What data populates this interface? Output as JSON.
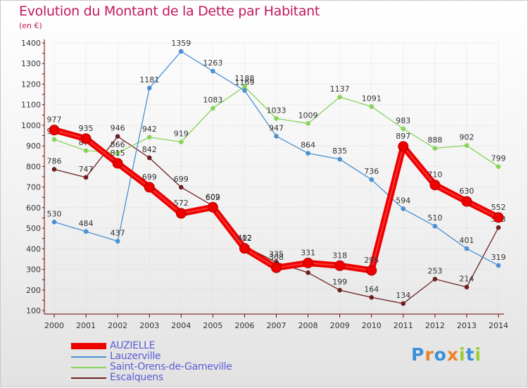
{
  "header": {
    "title": "Evolution du Montant de la Dette par Habitant",
    "unit": "(en €)"
  },
  "colors": {
    "title": "#c2185b",
    "axis": "#6b0000",
    "grid": "#d4d4d4",
    "legend_text": "#5b5bd6"
  },
  "brand": {
    "text": "Proxiti",
    "letters": [
      "P",
      "r",
      "o",
      "x",
      "i",
      "t",
      "i"
    ],
    "colors": [
      "#3a8fd8",
      "#e8822a",
      "#3a8fd8",
      "#e8822a",
      "#9ccc33",
      "#3a8fd8",
      "#9ccc33"
    ]
  },
  "chart_data": {
    "type": "line",
    "title": "Evolution du Montant de la Dette par Habitant",
    "ylabel": "(en €)",
    "xlabel": "",
    "x": [
      "2000",
      "2001",
      "2002",
      "2003",
      "2004",
      "2005",
      "2006",
      "2007",
      "2008",
      "2009",
      "2010",
      "2011",
      "2012",
      "2013",
      "2014"
    ],
    "ylim": [
      100,
      1400
    ],
    "yticks": [
      100,
      200,
      300,
      400,
      500,
      600,
      700,
      800,
      900,
      1000,
      1100,
      1200,
      1300,
      1400
    ],
    "grid": true,
    "legend_position": "bottom-left",
    "series": [
      {
        "name": "Escalquens",
        "color": "#6d1f1f",
        "highlight": false,
        "values": [
          786,
          747,
          946,
          842,
          699,
          609,
          412,
          335,
          284,
          199,
          164,
          134,
          253,
          214,
          503
        ],
        "labels": [
          "786",
          "747",
          "946",
          "842",
          "699",
          "609",
          "412",
          "335",
          "284",
          "199",
          "164",
          "134",
          "253",
          "214",
          "503"
        ]
      },
      {
        "name": "Saint-Orens-de-Gameville",
        "color": "#88d35a",
        "highlight": false,
        "values": [
          931,
          877,
          866,
          942,
          919,
          1083,
          1188,
          1033,
          1009,
          1137,
          1091,
          983,
          888,
          902,
          799
        ],
        "labels": [
          "931",
          "877",
          "866",
          "942",
          "919",
          "1083",
          "1188",
          "1033",
          "1009",
          "1137",
          "1091",
          "983",
          "888",
          "902",
          "799"
        ]
      },
      {
        "name": "Lauzerville",
        "color": "#4a90d2",
        "highlight": false,
        "values": [
          530,
          484,
          437,
          1181,
          1359,
          1263,
          1169,
          947,
          864,
          835,
          736,
          594,
          510,
          401,
          319
        ],
        "labels": [
          "530",
          "484",
          "437",
          "1181",
          "1359",
          "1263",
          "1169",
          "947",
          "864",
          "835",
          "736",
          "594",
          "510",
          "401",
          "319"
        ]
      },
      {
        "name": "AUZIELLE",
        "color": "#ee0000",
        "highlight": true,
        "values": [
          977,
          935,
          815,
          699,
          572,
          602,
          402,
          308,
          331,
          318,
          295,
          897,
          710,
          630,
          552
        ],
        "labels": [
          "977",
          "935",
          "815",
          "699",
          "572",
          "602",
          "402",
          "308",
          "331",
          "318",
          "295",
          "897",
          "710",
          "630",
          "552"
        ]
      }
    ]
  }
}
